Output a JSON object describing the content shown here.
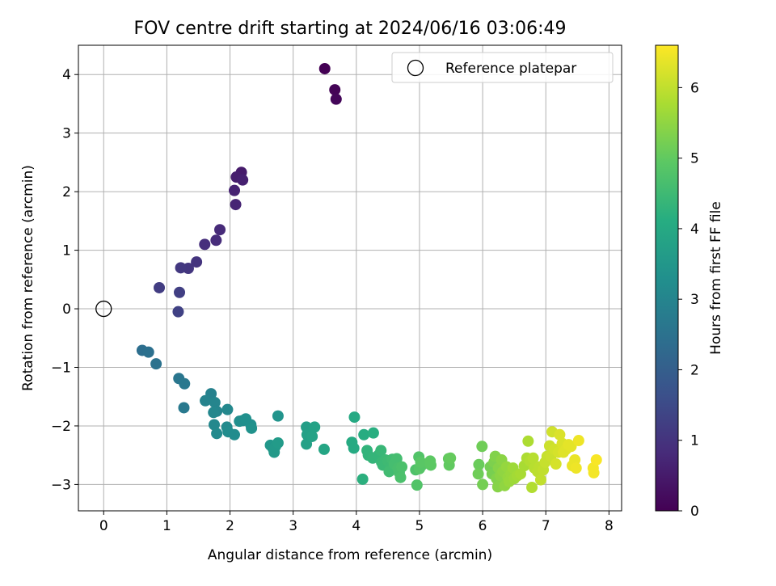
{
  "chart_data": {
    "type": "scatter",
    "title": "FOV centre drift starting at 2024/06/16 03:06:49",
    "xlabel": "Angular distance from reference (arcmin)",
    "ylabel": "Rotation from reference (arcmin)",
    "xlim": [
      -0.4,
      8.2
    ],
    "ylim": [
      -3.45,
      4.5
    ],
    "xticks": [
      "0",
      "1",
      "2",
      "3",
      "4",
      "5",
      "6",
      "7",
      "8"
    ],
    "yticks": [
      "4",
      "3",
      "2",
      "1",
      "0",
      "−1",
      "−2",
      "−3"
    ],
    "grid": true,
    "legend": {
      "position": "top-right",
      "entries": [
        "Reference platepar"
      ]
    },
    "reference": {
      "x": 0,
      "y": 0
    },
    "colorbar": {
      "label": "Hours from first FF file",
      "range": [
        0,
        6.6
      ],
      "ticks": [
        "0",
        "1",
        "2",
        "3",
        "4",
        "5",
        "6"
      ],
      "colormap": "viridis"
    },
    "points": [
      [
        3.5,
        4.1,
        0.0
      ],
      [
        3.66,
        3.74,
        0.05
      ],
      [
        3.68,
        3.58,
        0.1
      ],
      [
        2.18,
        2.33,
        0.5
      ],
      [
        2.1,
        2.25,
        0.55
      ],
      [
        2.2,
        2.2,
        0.6
      ],
      [
        2.07,
        2.02,
        0.65
      ],
      [
        2.09,
        1.78,
        0.7
      ],
      [
        1.84,
        1.35,
        0.8
      ],
      [
        1.78,
        1.17,
        0.85
      ],
      [
        1.6,
        1.1,
        0.9
      ],
      [
        1.47,
        0.8,
        1.0
      ],
      [
        1.34,
        0.69,
        1.05
      ],
      [
        1.22,
        0.7,
        1.1
      ],
      [
        0.88,
        0.36,
        1.2
      ],
      [
        1.2,
        0.28,
        1.25
      ],
      [
        1.18,
        -0.05,
        1.3
      ],
      [
        0.61,
        -0.71,
        2.4
      ],
      [
        0.71,
        -0.74,
        2.45
      ],
      [
        0.83,
        -0.94,
        2.5
      ],
      [
        1.19,
        -1.19,
        2.6
      ],
      [
        1.28,
        -1.28,
        2.65
      ],
      [
        1.27,
        -1.69,
        2.7
      ],
      [
        1.7,
        -1.45,
        2.9
      ],
      [
        1.61,
        -1.57,
        2.95
      ],
      [
        1.76,
        -1.6,
        3.0
      ],
      [
        1.79,
        -1.75,
        3.0
      ],
      [
        1.74,
        -1.77,
        3.05
      ],
      [
        1.96,
        -1.72,
        3.1
      ],
      [
        1.75,
        -1.98,
        3.1
      ],
      [
        1.79,
        -2.13,
        3.15
      ],
      [
        1.95,
        -2.02,
        3.15
      ],
      [
        1.97,
        -2.1,
        3.2
      ],
      [
        2.07,
        -2.15,
        3.2
      ],
      [
        2.15,
        -1.92,
        3.25
      ],
      [
        2.2,
        -1.91,
        3.25
      ],
      [
        2.25,
        -1.88,
        3.3
      ],
      [
        2.33,
        -1.98,
        3.3
      ],
      [
        2.34,
        -2.04,
        3.35
      ],
      [
        2.76,
        -1.83,
        3.4
      ],
      [
        2.64,
        -2.33,
        3.5
      ],
      [
        2.68,
        -2.38,
        3.5
      ],
      [
        2.7,
        -2.45,
        3.55
      ],
      [
        2.72,
        -2.35,
        3.55
      ],
      [
        2.76,
        -2.29,
        3.6
      ],
      [
        3.21,
        -2.02,
        3.7
      ],
      [
        3.22,
        -2.15,
        3.75
      ],
      [
        3.21,
        -2.31,
        3.75
      ],
      [
        3.3,
        -2.18,
        3.8
      ],
      [
        3.34,
        -2.02,
        3.8
      ],
      [
        3.49,
        -2.4,
        3.9
      ],
      [
        3.97,
        -1.85,
        4.0
      ],
      [
        3.93,
        -2.28,
        4.05
      ],
      [
        3.96,
        -2.38,
        4.05
      ],
      [
        4.12,
        -2.15,
        4.1
      ],
      [
        4.27,
        -2.12,
        4.15
      ],
      [
        4.1,
        -2.91,
        4.2
      ],
      [
        4.17,
        -2.42,
        4.3
      ],
      [
        4.19,
        -2.5,
        4.3
      ],
      [
        4.26,
        -2.55,
        4.35
      ],
      [
        4.35,
        -2.5,
        4.35
      ],
      [
        4.39,
        -2.42,
        4.4
      ],
      [
        4.4,
        -2.62,
        4.4
      ],
      [
        4.46,
        -2.58,
        4.45
      ],
      [
        4.42,
        -2.67,
        4.45
      ],
      [
        4.5,
        -2.6,
        4.5
      ],
      [
        4.55,
        -2.7,
        4.5
      ],
      [
        4.52,
        -2.78,
        4.55
      ],
      [
        4.57,
        -2.57,
        4.55
      ],
      [
        4.6,
        -2.65,
        4.6
      ],
      [
        4.64,
        -2.56,
        4.6
      ],
      [
        4.68,
        -2.8,
        4.65
      ],
      [
        4.66,
        -2.72,
        4.65
      ],
      [
        4.7,
        -2.88,
        4.7
      ],
      [
        4.72,
        -2.7,
        4.7
      ],
      [
        4.94,
        -2.75,
        4.75
      ],
      [
        4.96,
        -3.01,
        4.8
      ],
      [
        4.99,
        -2.53,
        4.8
      ],
      [
        5.0,
        -2.73,
        4.85
      ],
      [
        5.03,
        -2.68,
        4.85
      ],
      [
        5.02,
        -2.62,
        4.9
      ],
      [
        5.17,
        -2.6,
        4.95
      ],
      [
        5.18,
        -2.67,
        4.95
      ],
      [
        5.46,
        -2.56,
        5.0
      ],
      [
        5.47,
        -2.67,
        5.0
      ],
      [
        5.49,
        -2.55,
        5.05
      ],
      [
        5.94,
        -2.66,
        5.1
      ],
      [
        5.93,
        -2.82,
        5.15
      ],
      [
        5.99,
        -2.35,
        5.15
      ],
      [
        6.0,
        -3.0,
        5.2
      ],
      [
        6.12,
        -2.7,
        5.2
      ],
      [
        6.15,
        -2.82,
        5.25
      ],
      [
        6.18,
        -2.62,
        5.3
      ],
      [
        6.2,
        -2.52,
        5.35
      ],
      [
        6.22,
        -2.9,
        5.35
      ],
      [
        6.25,
        -2.72,
        5.4
      ],
      [
        6.24,
        -3.04,
        5.4
      ],
      [
        6.28,
        -2.85,
        5.45
      ],
      [
        6.3,
        -2.58,
        5.45
      ],
      [
        6.32,
        -2.78,
        5.5
      ],
      [
        6.35,
        -3.02,
        5.5
      ],
      [
        6.38,
        -2.7,
        5.55
      ],
      [
        6.4,
        -2.88,
        5.55
      ],
      [
        6.42,
        -2.95,
        5.6
      ],
      [
        6.45,
        -2.82,
        5.6
      ],
      [
        6.48,
        -2.72,
        5.65
      ],
      [
        6.5,
        -2.9,
        5.65
      ],
      [
        6.55,
        -2.85,
        5.7
      ],
      [
        6.6,
        -2.82,
        5.75
      ],
      [
        6.66,
        -2.68,
        5.75
      ],
      [
        6.7,
        -2.55,
        5.8
      ],
      [
        6.72,
        -2.26,
        5.8
      ],
      [
        6.75,
        -2.6,
        5.85
      ],
      [
        6.78,
        -3.05,
        5.85
      ],
      [
        6.8,
        -2.55,
        5.9
      ],
      [
        6.82,
        -2.72,
        5.9
      ],
      [
        6.87,
        -2.78,
        5.95
      ],
      [
        6.9,
        -2.7,
        5.95
      ],
      [
        6.92,
        -2.92,
        6.0
      ],
      [
        6.96,
        -2.75,
        6.0
      ],
      [
        6.99,
        -2.62,
        6.05
      ],
      [
        7.02,
        -2.52,
        6.05
      ],
      [
        7.06,
        -2.34,
        6.1
      ],
      [
        7.08,
        -2.52,
        6.1
      ],
      [
        7.1,
        -2.1,
        6.15
      ],
      [
        7.14,
        -2.4,
        6.15
      ],
      [
        7.16,
        -2.65,
        6.2
      ],
      [
        7.2,
        -2.45,
        6.2
      ],
      [
        7.22,
        -2.15,
        6.25
      ],
      [
        7.26,
        -2.3,
        6.25
      ],
      [
        7.28,
        -2.45,
        6.3
      ],
      [
        7.32,
        -2.4,
        6.3
      ],
      [
        7.36,
        -2.32,
        6.35
      ],
      [
        7.4,
        -2.35,
        6.35
      ],
      [
        7.42,
        -2.68,
        6.4
      ],
      [
        7.46,
        -2.58,
        6.4
      ],
      [
        7.48,
        -2.72,
        6.45
      ],
      [
        7.52,
        -2.25,
        6.45
      ],
      [
        7.75,
        -2.72,
        6.5
      ],
      [
        7.76,
        -2.8,
        6.5
      ],
      [
        7.8,
        -2.58,
        6.55
      ]
    ]
  }
}
